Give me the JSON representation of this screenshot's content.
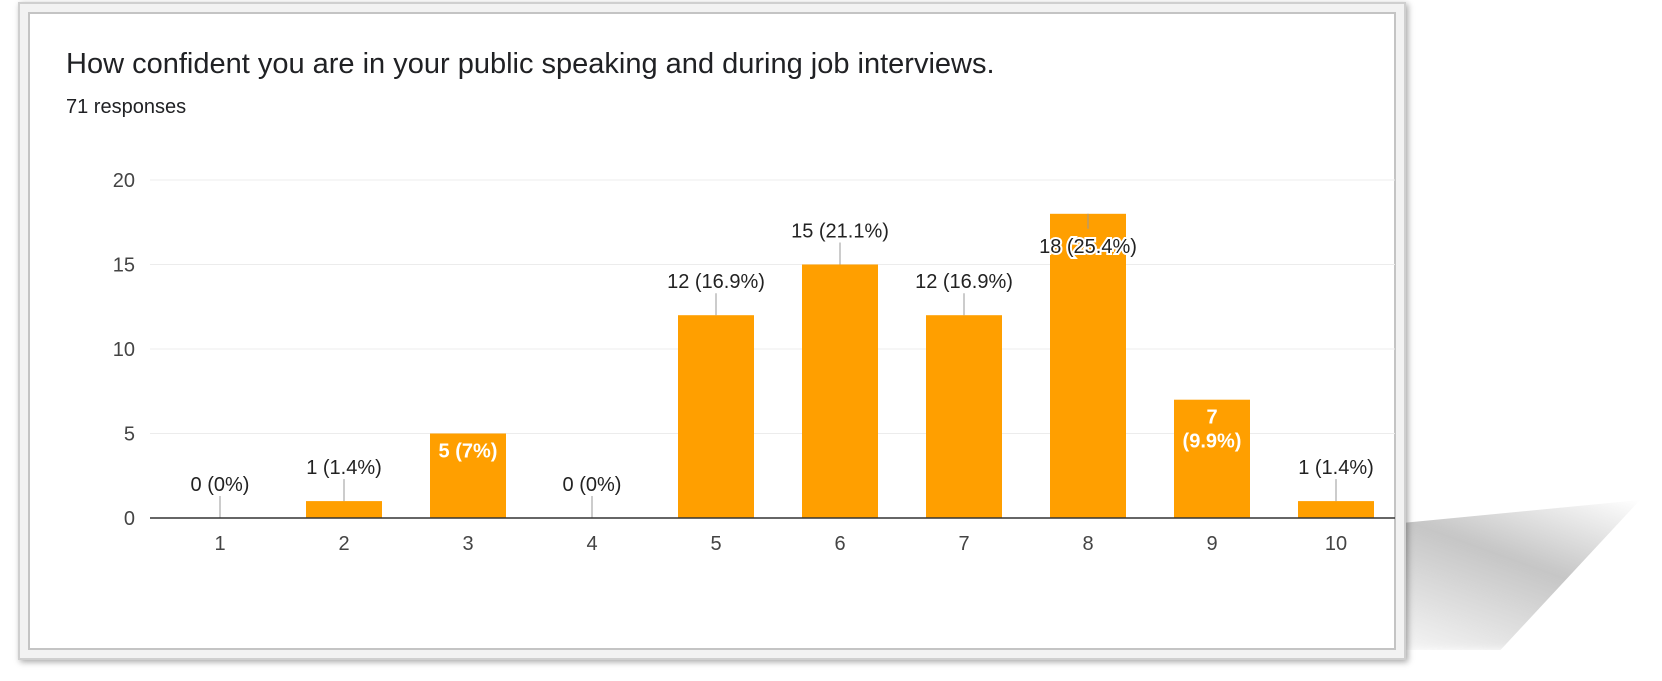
{
  "header": {
    "title": "How confident you are in your public speaking and during job interviews.",
    "responses": "71 responses"
  },
  "chart_data": {
    "type": "bar",
    "title": "How confident you are in your public speaking and during job interviews.",
    "subtitle": "71 responses",
    "categories": [
      "1",
      "2",
      "3",
      "4",
      "5",
      "6",
      "7",
      "8",
      "9",
      "10"
    ],
    "values": [
      0,
      1,
      5,
      0,
      12,
      15,
      12,
      18,
      7,
      1
    ],
    "data_labels": [
      "0 (0%)",
      "1 (1.4%)",
      "5 (7%)",
      "0 (0%)",
      "12 (16.9%)",
      "15 (21.1%)",
      "12 (16.9%)",
      "18 (25.4%)",
      "7 (9.9%)",
      "1 (1.4%)"
    ],
    "inside_labels": [
      false,
      false,
      true,
      false,
      false,
      false,
      false,
      true,
      true,
      false
    ],
    "y_ticks": [
      "0",
      "5",
      "10",
      "15",
      "20"
    ],
    "ylim": [
      0,
      20
    ],
    "xlabel": "",
    "ylabel": "",
    "grid": true,
    "legend": "none",
    "bar_color": "#ff9f00"
  }
}
